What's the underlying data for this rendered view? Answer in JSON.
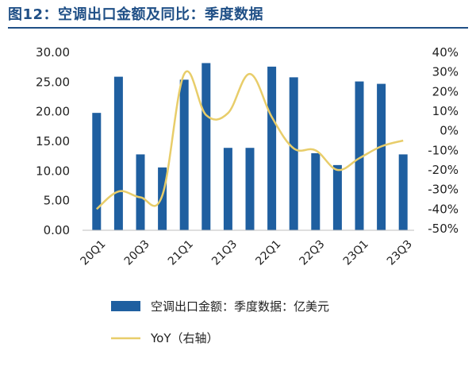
{
  "title": "图12：空调出口金额及同比：季度数据",
  "colors": {
    "bar": "#1f5fa0",
    "line": "#e8cd6a",
    "title": "#1f4f86"
  },
  "chart_data": {
    "type": "bar",
    "title": "图12：空调出口金额及同比：季度数据",
    "categories": [
      "20Q1",
      "20Q2",
      "20Q3",
      "20Q4",
      "21Q1",
      "21Q2",
      "21Q3",
      "21Q4",
      "22Q1",
      "22Q2",
      "22Q3",
      "22Q4",
      "23Q1",
      "23Q2",
      "23Q3"
    ],
    "x_tick_labels": [
      "20Q1",
      "20Q3",
      "21Q1",
      "21Q3",
      "22Q1",
      "22Q3",
      "23Q1",
      "23Q3"
    ],
    "series": [
      {
        "name": "空调出口金额：季度数据：亿美元",
        "type": "bar",
        "axis": "left",
        "values": [
          19.8,
          25.9,
          12.8,
          10.6,
          25.4,
          28.2,
          13.9,
          13.9,
          27.6,
          25.8,
          13.0,
          11.0,
          25.1,
          24.7,
          12.8
        ]
      },
      {
        "name": "YoY（右轴）",
        "type": "line",
        "axis": "right",
        "values": [
          -40,
          -31,
          -34,
          -33,
          29,
          8,
          9,
          29,
          7,
          -9,
          -10,
          -20,
          -14,
          -8,
          -5
        ]
      }
    ],
    "y_left": {
      "min": 0,
      "max": 30,
      "ticks": [
        "0.00",
        "5.00",
        "10.00",
        "15.00",
        "20.00",
        "25.00",
        "30.00"
      ]
    },
    "y_right": {
      "min": -50,
      "max": 40,
      "ticks": [
        "-50%",
        "-40%",
        "-30%",
        "-20%",
        "-10%",
        "0%",
        "10%",
        "20%",
        "30%",
        "40%"
      ]
    },
    "grid": false,
    "legend_position": "bottom"
  }
}
